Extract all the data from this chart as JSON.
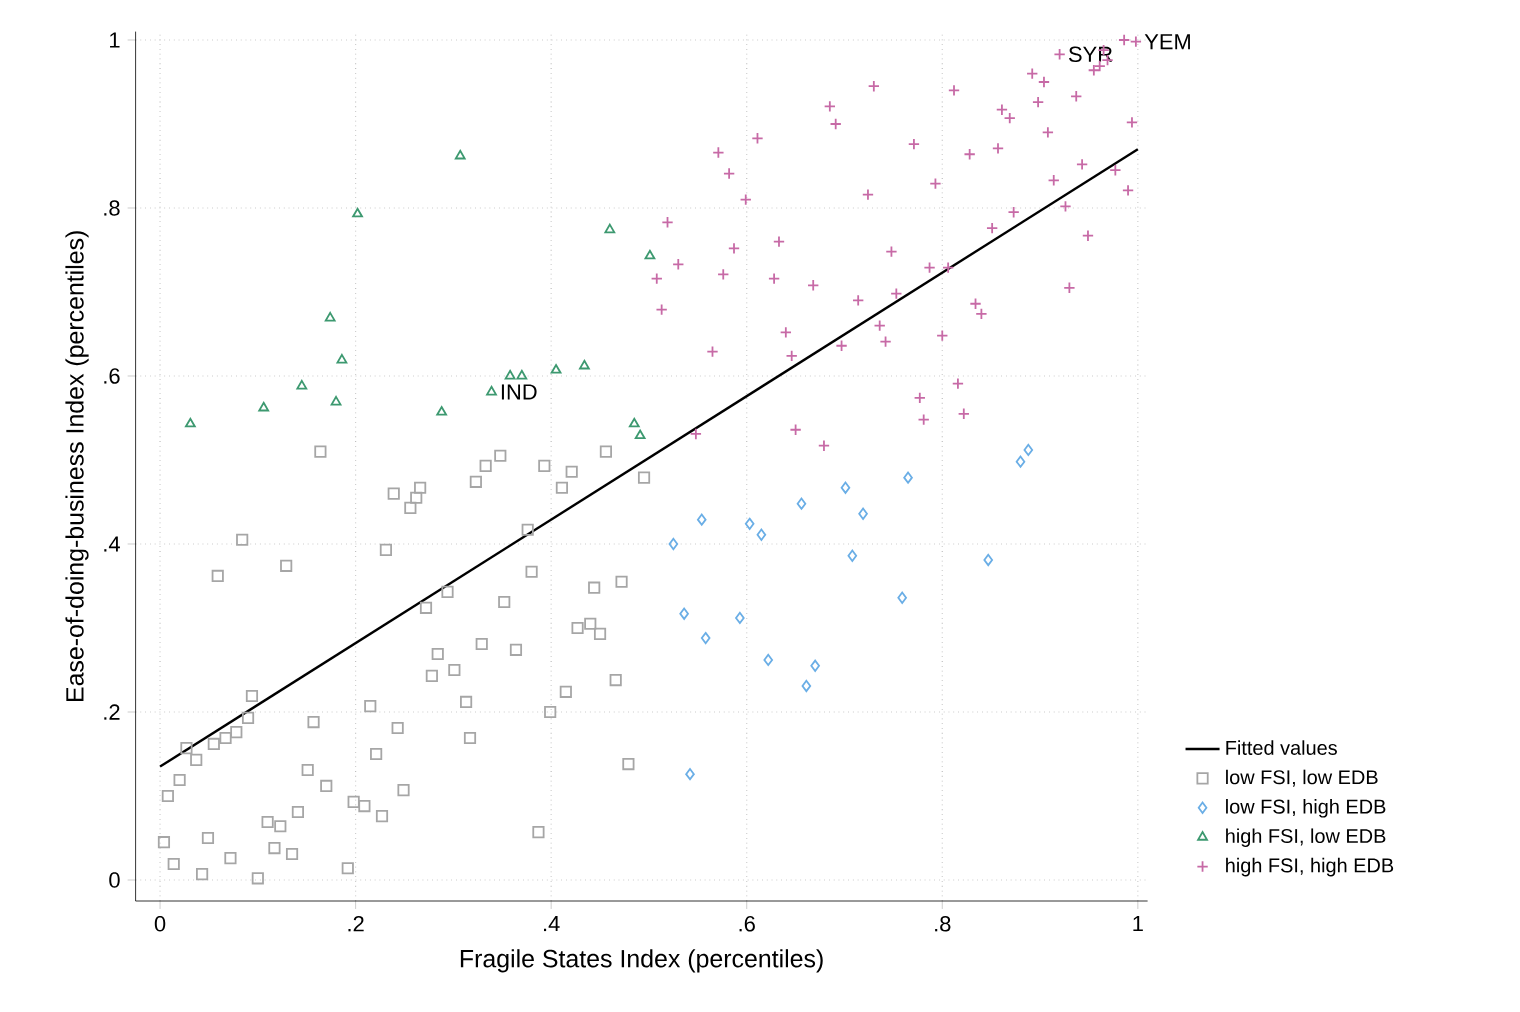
{
  "chart_data": {
    "type": "scatter",
    "xlabel": "Fragile States Index (percentiles)",
    "ylabel": "Ease-of-doing-business Index (percentiles)",
    "xlim": [
      -0.025,
      1.01
    ],
    "ylim": [
      -0.025,
      1.01
    ],
    "xticks": [
      0,
      {
        "value": 0.2,
        "label": ".2"
      },
      {
        "value": 0.4,
        "label": ".4"
      },
      {
        "value": 0.6,
        "label": ".6"
      },
      {
        "value": 0.8,
        "label": ".8"
      },
      1
    ],
    "yticks": [
      0,
      {
        "value": 0.2,
        "label": ".2"
      },
      {
        "value": 0.4,
        "label": ".4"
      },
      {
        "value": 0.6,
        "label": ".6"
      },
      {
        "value": 0.8,
        "label": ".8"
      },
      1
    ],
    "grid": true,
    "legend": "right",
    "annotations": [
      {
        "text": "IND",
        "x": 0.339,
        "y": 0.581
      },
      {
        "text": "SYR",
        "x": 0.92,
        "y": 0.983
      },
      {
        "text": "YEM",
        "x": 0.998,
        "y": 0.998
      }
    ],
    "series": [
      {
        "name": "Fitted values",
        "type": "line",
        "marker": "none",
        "line_style": "solid",
        "color": "#000000",
        "x": [
          0,
          1
        ],
        "values": [
          0.135,
          0.87
        ]
      },
      {
        "name": "low FSI, low EDB",
        "marker": "square",
        "color": "#a6a6a6",
        "x": [
          0.164,
          0.239,
          0.256,
          0.262,
          0.266,
          0.323,
          0.333,
          0.084,
          0.231,
          0.059,
          0.129,
          0.294,
          0.272,
          0.329,
          0.284,
          0.278,
          0.301,
          0.094,
          0.09,
          0.078,
          0.067,
          0.055,
          0.027,
          0.037,
          0.02,
          0.008,
          0.157,
          0.215,
          0.243,
          0.221,
          0.317,
          0.313,
          0.151,
          0.17,
          0.249,
          0.198,
          0.209,
          0.227,
          0.141,
          0.11,
          0.123,
          0.004,
          0.049,
          0.117,
          0.135,
          0.014,
          0.072,
          0.043,
          0.1,
          0.192,
          0.348,
          0.393,
          0.421,
          0.411,
          0.456,
          0.495,
          0.376,
          0.38,
          0.352,
          0.364,
          0.444,
          0.472,
          0.427,
          0.44,
          0.45,
          0.466,
          0.415,
          0.399,
          0.479,
          0.387
        ],
        "values": [
          0.51,
          0.46,
          0.443,
          0.455,
          0.467,
          0.474,
          0.493,
          0.405,
          0.393,
          0.362,
          0.374,
          0.343,
          0.324,
          0.281,
          0.269,
          0.243,
          0.25,
          0.219,
          0.193,
          0.176,
          0.169,
          0.162,
          0.157,
          0.143,
          0.119,
          0.1,
          0.188,
          0.207,
          0.181,
          0.15,
          0.169,
          0.212,
          0.131,
          0.112,
          0.107,
          0.093,
          0.088,
          0.076,
          0.081,
          0.069,
          0.064,
          0.045,
          0.05,
          0.038,
          0.031,
          0.019,
          0.026,
          0.007,
          0.002,
          0.014,
          0.505,
          0.493,
          0.486,
          0.467,
          0.51,
          0.479,
          0.417,
          0.367,
          0.331,
          0.274,
          0.348,
          0.355,
          0.3,
          0.305,
          0.293,
          0.238,
          0.224,
          0.2,
          0.138,
          0.057
        ]
      },
      {
        "name": "low FSI, high EDB",
        "marker": "diamond",
        "color": "#6aaee6",
        "x": [
          0.525,
          0.554,
          0.603,
          0.615,
          0.656,
          0.536,
          0.558,
          0.593,
          0.622,
          0.661,
          0.67,
          0.542,
          0.701,
          0.719,
          0.765,
          0.708,
          0.759,
          0.888,
          0.88,
          0.847
        ],
        "values": [
          0.4,
          0.429,
          0.424,
          0.411,
          0.448,
          0.317,
          0.288,
          0.312,
          0.262,
          0.231,
          0.255,
          0.126,
          0.467,
          0.436,
          0.479,
          0.386,
          0.336,
          0.512,
          0.498,
          0.381
        ]
      },
      {
        "name": "high FSI, low EDB",
        "marker": "triangle",
        "color": "#3d9970",
        "x": [
          0.307,
          0.202,
          0.174,
          0.186,
          0.145,
          0.18,
          0.106,
          0.031,
          0.288,
          0.339,
          0.358,
          0.37,
          0.405,
          0.434,
          0.46,
          0.501,
          0.485,
          0.491
        ],
        "values": [
          0.862,
          0.793,
          0.669,
          0.619,
          0.588,
          0.569,
          0.562,
          0.543,
          0.557,
          0.581,
          0.6,
          0.6,
          0.607,
          0.612,
          0.774,
          0.743,
          0.543,
          0.529
        ]
      },
      {
        "name": "high FSI, high EDB",
        "marker": "cross",
        "color": "#c76aa6",
        "x": [
          0.73,
          0.685,
          0.691,
          0.611,
          0.571,
          0.582,
          0.599,
          0.724,
          0.519,
          0.587,
          0.633,
          0.53,
          0.576,
          0.508,
          0.628,
          0.668,
          0.714,
          0.513,
          0.64,
          0.697,
          0.646,
          0.565,
          0.736,
          0.65,
          0.548,
          0.679,
          0.812,
          0.892,
          0.904,
          0.92,
          0.937,
          0.898,
          0.861,
          0.869,
          0.955,
          0.961,
          0.965,
          0.969,
          0.986,
          0.771,
          0.828,
          0.857,
          0.908,
          0.994,
          0.793,
          0.914,
          0.943,
          0.977,
          0.99,
          0.873,
          0.926,
          0.851,
          0.949,
          0.748,
          0.787,
          0.806,
          0.753,
          0.93,
          0.742,
          0.834,
          0.84,
          0.8,
          0.816,
          0.822,
          0.777,
          0.781,
          0.998
        ],
        "values": [
          0.945,
          0.921,
          0.9,
          0.883,
          0.866,
          0.841,
          0.81,
          0.816,
          0.783,
          0.752,
          0.76,
          0.733,
          0.721,
          0.716,
          0.716,
          0.708,
          0.69,
          0.679,
          0.652,
          0.636,
          0.624,
          0.629,
          0.66,
          0.536,
          0.531,
          0.517,
          0.94,
          0.96,
          0.95,
          0.983,
          0.933,
          0.926,
          0.917,
          0.907,
          0.964,
          0.969,
          0.988,
          0.976,
          1.0,
          0.876,
          0.864,
          0.871,
          0.89,
          0.902,
          0.829,
          0.833,
          0.852,
          0.845,
          0.821,
          0.795,
          0.802,
          0.776,
          0.767,
          0.748,
          0.729,
          0.729,
          0.698,
          0.705,
          0.641,
          0.686,
          0.674,
          0.648,
          0.591,
          0.555,
          0.574,
          0.548,
          0.998
        ]
      }
    ]
  }
}
